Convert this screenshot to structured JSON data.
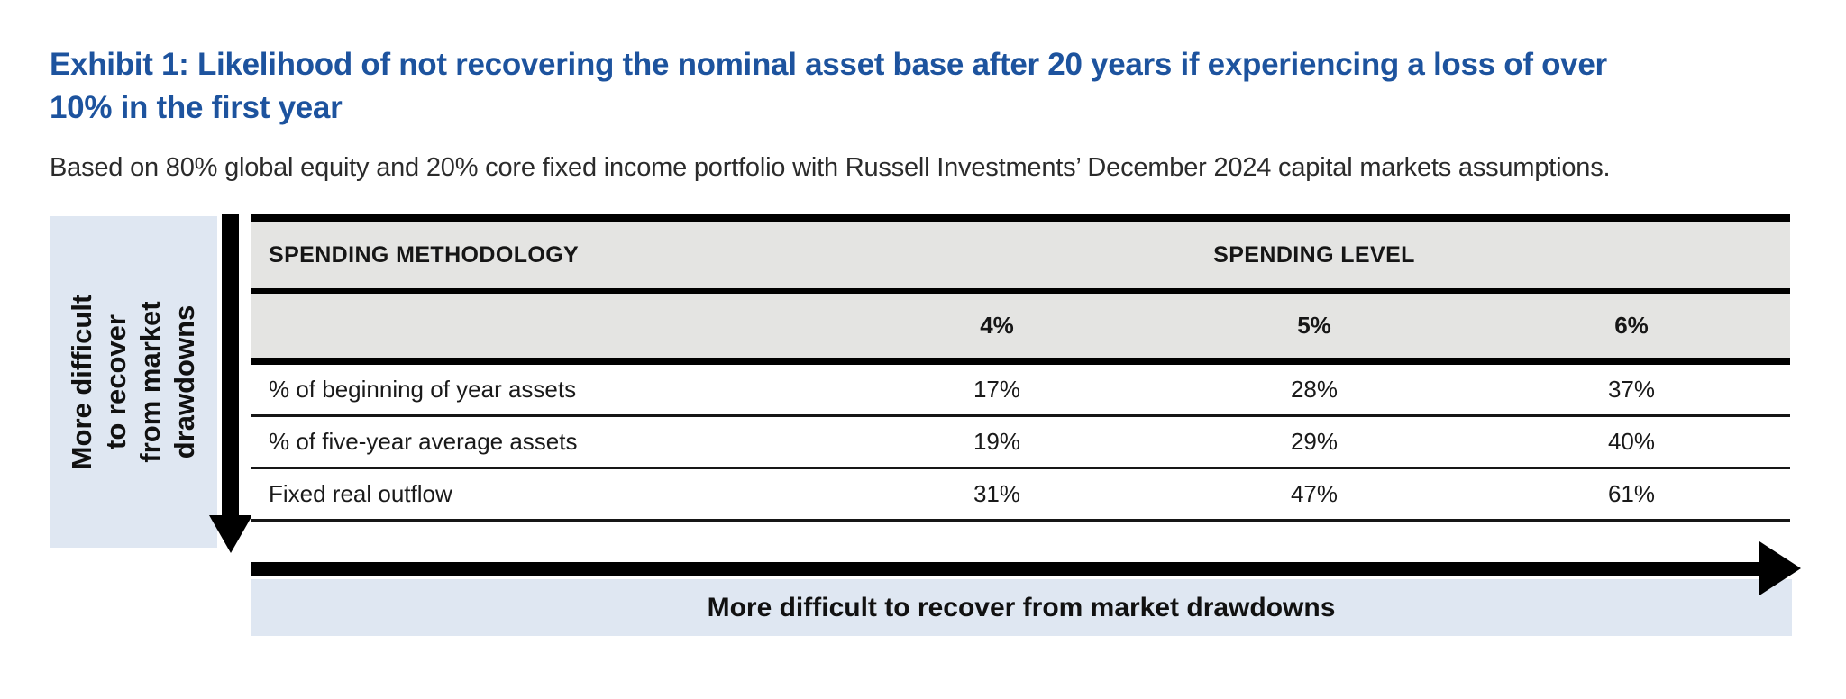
{
  "exhibit": {
    "title_lines": [
      "Exhibit 1: Likelihood of not recovering the nominal asset base after 20 years if experiencing a loss of over",
      "10% in the first year"
    ],
    "subtitle": "Based on 80% global equity and 20% core fixed income portfolio with Russell Investments’ December 2024 capital markets assumptions."
  },
  "axes": {
    "vertical": {
      "label": "More difficult to recover from market drawdowns",
      "lines": [
        "More difficult",
        "to recover",
        "from market",
        "drawdowns"
      ],
      "direction": "down"
    },
    "horizontal": {
      "label": "More difficult to recover from market drawdowns",
      "direction": "right"
    }
  },
  "table": {
    "header_group": {
      "methodology": "SPENDING METHODOLOGY",
      "level": "SPENDING LEVEL"
    },
    "columns": [
      "4%",
      "5%",
      "6%"
    ],
    "rows": [
      {
        "label": "% of beginning of year assets",
        "values": [
          "17%",
          "28%",
          "37%"
        ]
      },
      {
        "label": "% of five-year average assets",
        "values": [
          "19%",
          "29%",
          "40%"
        ]
      },
      {
        "label": "Fixed real outflow",
        "values": [
          "31%",
          "47%",
          "61%"
        ]
      }
    ]
  },
  "colors": {
    "title_blue": "#1d539e",
    "panel_blue": "#dfe7f2",
    "header_gray": "#e4e4e2",
    "arrow_black": "#000000"
  },
  "chart_data": {
    "type": "table",
    "title": "Exhibit 1: Likelihood of not recovering the nominal asset base after 20 years if experiencing a loss of over 10% in the first year",
    "subtitle": "Based on 80% global equity and 20% core fixed income portfolio with Russell Investments’ December 2024 capital markets assumptions.",
    "row_group_label": "SPENDING METHODOLOGY",
    "column_group_label": "SPENDING LEVEL",
    "columns": [
      "4%",
      "5%",
      "6%"
    ],
    "rows": [
      {
        "label": "% of beginning of year assets",
        "values_pct": [
          17,
          28,
          37
        ]
      },
      {
        "label": "% of five-year average assets",
        "values_pct": [
          19,
          29,
          40
        ]
      },
      {
        "label": "Fixed real outflow",
        "values_pct": [
          31,
          47,
          61
        ]
      }
    ],
    "annotations": [
      {
        "text": "More difficult to recover from market drawdowns",
        "orientation": "vertical",
        "direction": "down",
        "position": "left"
      },
      {
        "text": "More difficult to recover from market drawdowns",
        "orientation": "horizontal",
        "direction": "right",
        "position": "bottom"
      }
    ]
  }
}
